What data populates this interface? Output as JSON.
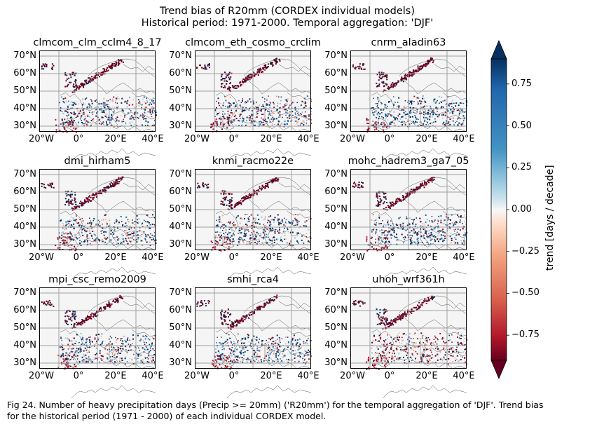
{
  "figure": {
    "title_line1": "Trend bias of R20mm (CORDEX individual models)",
    "title_line2": "Historical period: 1971-2000. Temporal aggregation: 'DJF'"
  },
  "map": {
    "lat_ticks": [
      "70°N",
      "60°N",
      "50°N",
      "40°N",
      "30°N"
    ],
    "lon_ticks": [
      "20°W",
      "0°",
      "20°E",
      "40°E"
    ],
    "panels": [
      {
        "name": "clmcom_clm_cclm4_8_17",
        "style": "mixed"
      },
      {
        "name": "clmcom_eth_cosmo_crclim",
        "style": "mixed"
      },
      {
        "name": "cnrm_aladin63",
        "style": "wet"
      },
      {
        "name": "dmi_hirham5",
        "style": "mixed"
      },
      {
        "name": "knmi_racmo22e",
        "style": "mixed"
      },
      {
        "name": "mohc_hadrem3_ga7_05",
        "style": "mixed"
      },
      {
        "name": "mpi_csc_remo2009",
        "style": "mixed"
      },
      {
        "name": "smhi_rca4",
        "style": "mixed"
      },
      {
        "name": "uhoh_wrf361h",
        "style": "dry"
      }
    ]
  },
  "colorbar": {
    "label": "trend [days / decade]",
    "ticks": [
      "0.75",
      "0.50",
      "0.25",
      "0.00",
      "−0.25",
      "−0.50",
      "−0.75"
    ],
    "tick_values": [
      0.75,
      0.5,
      0.25,
      0.0,
      -0.25,
      -0.5,
      -0.75
    ],
    "range": [
      -0.9,
      0.9
    ],
    "colormap": "RdBu",
    "colors": {
      "dark_blue": "#053061",
      "blue": "#2166ac",
      "light_blue": "#92c5de",
      "white": "#f7f7f7",
      "light_red": "#f4a582",
      "red": "#b2182b",
      "dark_red": "#67001f"
    }
  },
  "caption": {
    "line1": "Fig 24. Number of heavy precipitation days (Precip >= 20mm) ('R20mm') for the temporal aggregation of 'DJF'. Trend bias",
    "line2": "for the historical period (1971 - 2000) of each individual CORDEX model."
  }
}
